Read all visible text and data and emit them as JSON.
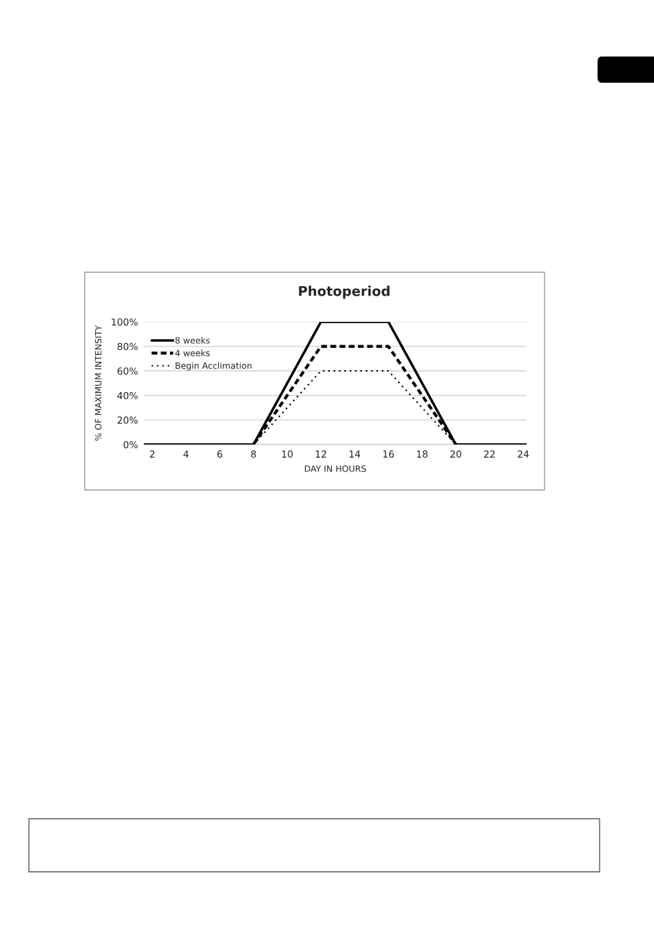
{
  "chart_data": {
    "type": "line",
    "title": "Photoperiod",
    "xlabel": "DAY IN HOURS",
    "ylabel": "% OF MAXIMUM INTENSITY",
    "xlim": [
      1.5,
      24.2
    ],
    "xticks": [
      2,
      4,
      6,
      8,
      10,
      12,
      14,
      16,
      18,
      20,
      22,
      24
    ],
    "ylim": [
      0,
      100
    ],
    "yticks": [
      {
        "value": 0,
        "label": "0%"
      },
      {
        "value": 20,
        "label": "20%"
      },
      {
        "value": 40,
        "label": "40%"
      },
      {
        "value": 60,
        "label": "60%"
      },
      {
        "value": 80,
        "label": "80%"
      },
      {
        "value": 100,
        "label": "100%"
      }
    ],
    "grid": "y",
    "legend": "top left",
    "marker": "none",
    "series": [
      {
        "name": "8 weeks",
        "color": "#000000",
        "line_style": "solid",
        "x": [
          1.5,
          8,
          12,
          16,
          20,
          24.2
        ],
        "values": [
          0,
          0,
          100,
          100,
          0,
          0
        ]
      },
      {
        "name": "4 weeks",
        "color": "#000000",
        "line_style": "dashed",
        "x": [
          8,
          12,
          16,
          20
        ],
        "values": [
          0,
          80,
          80,
          0
        ]
      },
      {
        "name": "Begin Acclimation",
        "color": "#000000",
        "line_style": "dotted",
        "x": [
          8,
          12,
          16,
          20
        ],
        "values": [
          0,
          60,
          60,
          0
        ]
      }
    ]
  }
}
